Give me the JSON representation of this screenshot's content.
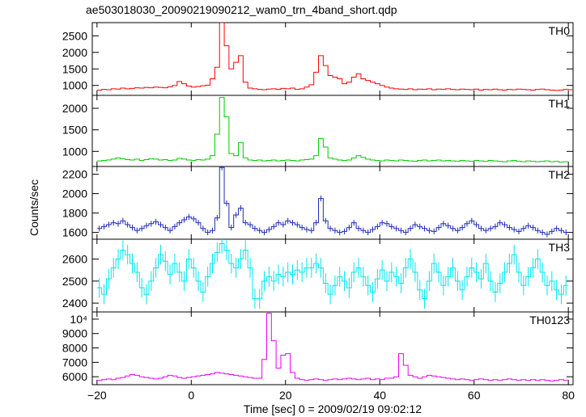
{
  "chart_data": {
    "type": "line",
    "title": "ae503018030_20090219090212_wam0_trn_4band_short.qdp",
    "xlabel": "Time [sec] 0 = 2009/02/19 09:02:12",
    "ylabel": "Counts/sec",
    "xlim": [
      -21,
      81
    ],
    "x_ticks": [
      -20,
      0,
      20,
      40,
      60,
      80
    ],
    "x_tick_labels": [
      "−20",
      "0",
      "20",
      "40",
      "60",
      "80"
    ],
    "bin_width": 1,
    "x_start": -20,
    "panels": [
      {
        "name": "TH0",
        "color": "#ff0000",
        "ylim": [
          700,
          2900
        ],
        "y_ticks": [
          1000,
          1500,
          2000,
          2500
        ],
        "y_tick_labels": [
          "1000",
          "1500",
          "2000",
          "2500"
        ],
        "errors": false,
        "values": [
          860,
          880,
          870,
          900,
          890,
          920,
          900,
          910,
          930,
          920,
          940,
          930,
          950,
          940,
          930,
          960,
          1000,
          1120,
          1050,
          980,
          950,
          970,
          990,
          1010,
          1200,
          1550,
          2900,
          2200,
          1500,
          1700,
          1900,
          1100,
          920,
          900,
          880,
          870,
          890,
          900,
          880,
          910,
          900,
          920,
          880,
          900,
          950,
          1020,
          1400,
          1900,
          1600,
          1300,
          1250,
          1200,
          1050,
          1100,
          1250,
          1350,
          1200,
          1150,
          1100,
          1050,
          1000,
          950,
          920,
          900,
          890,
          880,
          900,
          870,
          890,
          880,
          900,
          870,
          890,
          880,
          900,
          880,
          870,
          890,
          880,
          870,
          890,
          860,
          880,
          870,
          890,
          870,
          860,
          880,
          870,
          890,
          880,
          870,
          860,
          880,
          890,
          870,
          860,
          850,
          860,
          880,
          870,
          860
        ]
      },
      {
        "name": "TH1",
        "color": "#00cc00",
        "ylim": [
          650,
          2300
        ],
        "y_ticks": [
          1000,
          1500,
          2000
        ],
        "y_tick_labels": [
          "1000",
          "1500",
          "2000"
        ],
        "errors": false,
        "values": [
          780,
          790,
          800,
          820,
          850,
          830,
          810,
          800,
          820,
          790,
          810,
          830,
          820,
          800,
          810,
          790,
          800,
          840,
          820,
          800,
          790,
          810,
          800,
          820,
          900,
          1400,
          2250,
          1800,
          950,
          900,
          1200,
          850,
          800,
          790,
          800,
          780,
          790,
          800,
          780,
          790,
          800,
          790,
          780,
          800,
          810,
          820,
          900,
          1300,
          1100,
          850,
          820,
          800,
          790,
          800,
          850,
          900,
          860,
          820,
          800,
          790,
          780,
          800,
          790,
          780,
          800,
          790,
          780,
          770,
          790,
          800,
          780,
          790,
          800,
          780,
          790,
          780,
          770,
          790,
          780,
          770,
          790,
          780,
          770,
          790,
          780,
          770,
          760,
          780,
          790,
          770,
          760,
          780,
          770,
          760,
          770,
          780,
          760,
          770,
          750,
          760
        ]
      },
      {
        "name": "TH2",
        "color": "#1f2bb8",
        "ylim": [
          1530,
          2280
        ],
        "y_ticks": [
          1600,
          1800,
          2000,
          2200
        ],
        "y_tick_labels": [
          "1600",
          "1800",
          "2000",
          "2200"
        ],
        "errors": true,
        "err": 30,
        "values": [
          1640,
          1660,
          1680,
          1700,
          1690,
          1720,
          1680,
          1650,
          1620,
          1640,
          1670,
          1690,
          1710,
          1680,
          1650,
          1620,
          1660,
          1700,
          1730,
          1760,
          1740,
          1700,
          1640,
          1600,
          1620,
          1750,
          2270,
          1900,
          1650,
          1780,
          1850,
          1700,
          1680,
          1640,
          1620,
          1600,
          1630,
          1660,
          1700,
          1680,
          1720,
          1700,
          1680,
          1650,
          1630,
          1620,
          1700,
          1950,
          1720,
          1640,
          1620,
          1600,
          1610,
          1650,
          1700,
          1640,
          1620,
          1600,
          1630,
          1660,
          1700,
          1690,
          1660,
          1640,
          1620,
          1600,
          1640,
          1680,
          1660,
          1640,
          1620,
          1610,
          1650,
          1690,
          1670,
          1640,
          1620,
          1650,
          1690,
          1720,
          1680,
          1640,
          1620,
          1640,
          1660,
          1700,
          1680,
          1650,
          1630,
          1610,
          1640,
          1670,
          1650,
          1620,
          1600,
          1580,
          1610,
          1640,
          1620,
          1600
        ]
      },
      {
        "name": "TH3",
        "color": "#00e5ee",
        "ylim": [
          2360,
          2690
        ],
        "y_ticks": [
          2400,
          2500,
          2600
        ],
        "y_tick_labels": [
          "2400",
          "2500",
          "2600"
        ],
        "errors": true,
        "err": 45,
        "values": [
          2470,
          2440,
          2510,
          2560,
          2600,
          2640,
          2620,
          2580,
          2540,
          2470,
          2440,
          2500,
          2560,
          2620,
          2590,
          2530,
          2580,
          2540,
          2500,
          2600,
          2560,
          2500,
          2450,
          2520,
          2580,
          2630,
          2670,
          2640,
          2580,
          2560,
          2600,
          2640,
          2560,
          2420,
          2420,
          2500,
          2520,
          2500,
          2530,
          2520,
          2540,
          2530,
          2550,
          2540,
          2560,
          2560,
          2580,
          2560,
          2490,
          2440,
          2480,
          2520,
          2500,
          2470,
          2540,
          2560,
          2520,
          2480,
          2450,
          2510,
          2550,
          2500,
          2540,
          2520,
          2490,
          2560,
          2600,
          2540,
          2460,
          2420,
          2500,
          2580,
          2540,
          2480,
          2520,
          2560,
          2500,
          2460,
          2520,
          2560,
          2540,
          2510,
          2580,
          2500,
          2450,
          2490,
          2540,
          2580,
          2620,
          2540,
          2480,
          2520,
          2560,
          2600,
          2540,
          2480,
          2500,
          2460,
          2440,
          2480
        ]
      },
      {
        "name": "TH0123",
        "color": "#ee00ee",
        "ylim": [
          5450,
          10500
        ],
        "y_ticks": [
          6000,
          7000,
          8000,
          9000,
          10000
        ],
        "y_tick_labels": [
          "6000",
          "7000",
          "8000",
          "9000",
          "10⁴"
        ],
        "errors": false,
        "values": [
          5750,
          5800,
          5850,
          5800,
          5900,
          5950,
          6050,
          6150,
          6100,
          6000,
          5950,
          5900,
          5850,
          5900,
          6000,
          6100,
          6050,
          5950,
          5900,
          5950,
          6000,
          6050,
          6100,
          6150,
          6200,
          6300,
          6250,
          6200,
          6150,
          6100,
          6050,
          6000,
          5950,
          5900,
          5900,
          7200,
          10400,
          8500,
          6600,
          7500,
          7600,
          6300,
          5900,
          5800,
          5750,
          5800,
          5850,
          5800,
          5750,
          5800,
          5850,
          5800,
          5850,
          5900,
          5850,
          5800,
          5850,
          5900,
          5800,
          5850,
          5800,
          5900,
          5900,
          6000,
          7600,
          6800,
          6100,
          6000,
          5900,
          6000,
          6100,
          6050,
          6000,
          5950,
          5900,
          5850,
          5800,
          5850,
          5800,
          5750,
          5800,
          5850,
          5800,
          5750,
          5800,
          5750,
          5800,
          5850,
          5800,
          5750,
          5800,
          5750,
          5800,
          5750,
          5800,
          5750,
          5700,
          5750,
          5800,
          5750
        ]
      }
    ]
  }
}
